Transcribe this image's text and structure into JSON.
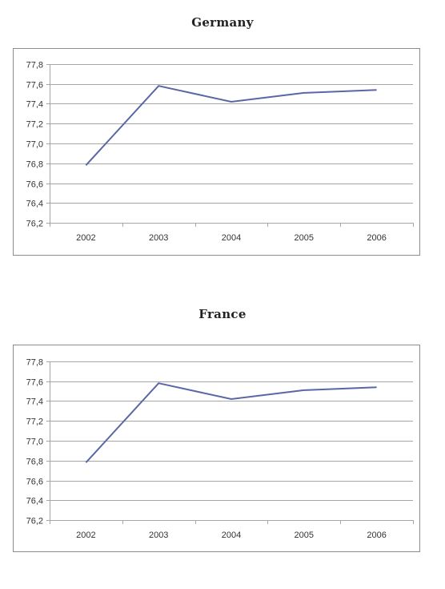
{
  "chart_data": [
    {
      "type": "line",
      "title": "Germany",
      "categories": [
        "2002",
        "2003",
        "2004",
        "2005",
        "2006"
      ],
      "series": [
        {
          "values": [
            76.78,
            77.58,
            77.42,
            77.51,
            77.54
          ]
        }
      ],
      "ylim": [
        76.2,
        77.8
      ],
      "yticks": [
        "77,8",
        "77,6",
        "77,4",
        "77,2",
        "77,0",
        "76,8",
        "76,6",
        "76,4",
        "76,2"
      ],
      "grid": true,
      "line_color": "#5b66a6"
    },
    {
      "type": "line",
      "title": "France",
      "categories": [
        "2002",
        "2003",
        "2004",
        "2005",
        "2006"
      ],
      "series": [
        {
          "values": [
            76.78,
            77.58,
            77.42,
            77.51,
            77.54
          ]
        }
      ],
      "ylim": [
        76.2,
        77.8
      ],
      "yticks": [
        "77,8",
        "77,6",
        "77,4",
        "77,2",
        "77,0",
        "76,8",
        "76,6",
        "76,4",
        "76,2"
      ],
      "grid": true,
      "line_color": "#5b66a6"
    }
  ]
}
